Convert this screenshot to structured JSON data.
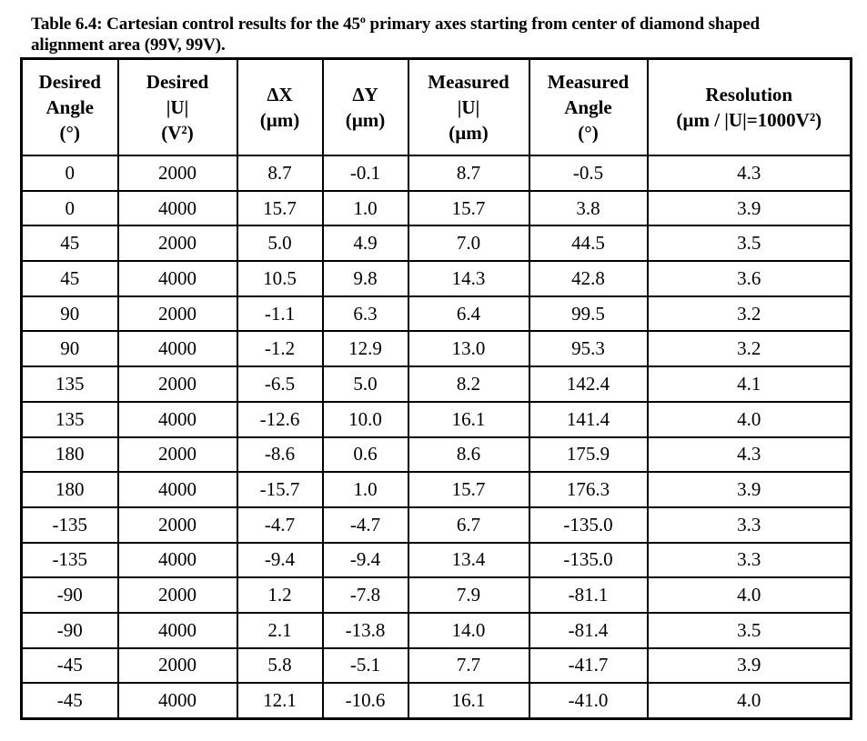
{
  "caption": {
    "line1_before_sup": "Table 6.4: Cartesian control results for the 45",
    "line1_sup": "o",
    "line1_after_sup": " primary axes starting from center of diamond shaped",
    "line2": "alignment area (99V, 99V)."
  },
  "columns": [
    {
      "lines": [
        "Desired",
        "Angle",
        "(°)"
      ]
    },
    {
      "lines": [
        "Desired",
        "|U|",
        "(V²)"
      ]
    },
    {
      "lines": [
        "ΔX",
        "(µm)"
      ]
    },
    {
      "lines": [
        "ΔY",
        "(µm)"
      ]
    },
    {
      "lines": [
        "Measured",
        "|U|",
        "(µm)"
      ]
    },
    {
      "lines": [
        "Measured",
        "Angle",
        "(°)"
      ]
    },
    {
      "lines": [
        "Resolution",
        "(µm / |U|=1000V²)"
      ]
    }
  ],
  "rows": [
    [
      "0",
      "2000",
      "8.7",
      "-0.1",
      "8.7",
      "-0.5",
      "4.3"
    ],
    [
      "0",
      "4000",
      "15.7",
      "1.0",
      "15.7",
      "3.8",
      "3.9"
    ],
    [
      "45",
      "2000",
      "5.0",
      "4.9",
      "7.0",
      "44.5",
      "3.5"
    ],
    [
      "45",
      "4000",
      "10.5",
      "9.8",
      "14.3",
      "42.8",
      "3.6"
    ],
    [
      "90",
      "2000",
      "-1.1",
      "6.3",
      "6.4",
      "99.5",
      "3.2"
    ],
    [
      "90",
      "4000",
      "-1.2",
      "12.9",
      "13.0",
      "95.3",
      "3.2"
    ],
    [
      "135",
      "2000",
      "-6.5",
      "5.0",
      "8.2",
      "142.4",
      "4.1"
    ],
    [
      "135",
      "4000",
      "-12.6",
      "10.0",
      "16.1",
      "141.4",
      "4.0"
    ],
    [
      "180",
      "2000",
      "-8.6",
      "0.6",
      "8.6",
      "175.9",
      "4.3"
    ],
    [
      "180",
      "4000",
      "-15.7",
      "1.0",
      "15.7",
      "176.3",
      "3.9"
    ],
    [
      "-135",
      "2000",
      "-4.7",
      "-4.7",
      "6.7",
      "-135.0",
      "3.3"
    ],
    [
      "-135",
      "4000",
      "-9.4",
      "-9.4",
      "13.4",
      "-135.0",
      "3.3"
    ],
    [
      "-90",
      "2000",
      "1.2",
      "-7.8",
      "7.9",
      "-81.1",
      "4.0"
    ],
    [
      "-90",
      "4000",
      "2.1",
      "-13.8",
      "14.0",
      "-81.4",
      "3.5"
    ],
    [
      "-45",
      "2000",
      "5.8",
      "-5.1",
      "7.7",
      "-41.7",
      "3.9"
    ],
    [
      "-45",
      "4000",
      "12.1",
      "-10.6",
      "16.1",
      "-41.0",
      "4.0"
    ]
  ]
}
